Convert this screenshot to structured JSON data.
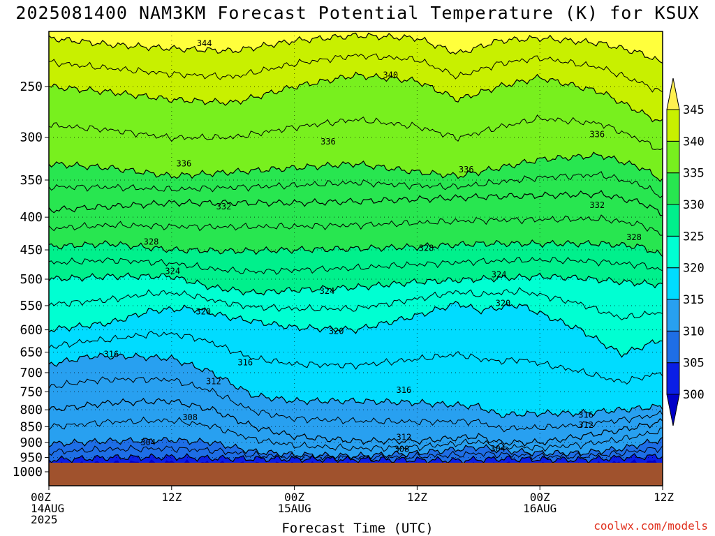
{
  "title": "2025081400 NAM3KM Forecast Potential Temperature (K) for KSUX",
  "credit": "coolwx.com/models",
  "chart_data": {
    "type": "contour",
    "title": "2025081400 NAM3KM Forecast Potential Temperature (K) for KSUX",
    "xlabel": "Forecast Time (UTC)",
    "ylabel": "",
    "y_scale": "log-pressure",
    "y_reversed": true,
    "y_ticks": [
      250,
      300,
      350,
      400,
      450,
      500,
      550,
      600,
      650,
      700,
      750,
      800,
      850,
      900,
      950,
      1000
    ],
    "y_range": [
      200,
      1025
    ],
    "x_range_hours": [
      0,
      60
    ],
    "x_ticks": [
      {
        "hour": 0,
        "lines": [
          "00Z",
          "14AUG",
          "2025"
        ]
      },
      {
        "hour": 12,
        "lines": [
          "12Z"
        ]
      },
      {
        "hour": 24,
        "lines": [
          "00Z",
          "15AUG"
        ]
      },
      {
        "hour": 36,
        "lines": [
          "12Z"
        ]
      },
      {
        "hour": 48,
        "lines": [
          "00Z",
          "16AUG"
        ]
      },
      {
        "hour": 60,
        "lines": [
          "12Z"
        ]
      }
    ],
    "grid": true,
    "colorbar": {
      "levels": [
        300,
        305,
        310,
        315,
        320,
        325,
        330,
        335,
        340,
        345
      ],
      "colors": [
        "#0a1ee6",
        "#1e6ee6",
        "#28a0f0",
        "#00dcff",
        "#00ffd2",
        "#00f08c",
        "#28e650",
        "#78f01e",
        "#c8f000",
        "#ffff3c"
      ],
      "under_color": "#0000c8",
      "over_color": "#fff050"
    },
    "terrain_color": "#a0522d",
    "surface_pressure": 968,
    "isentropes": [
      {
        "theta": 304,
        "p": [
          [
            0,
            958
          ],
          [
            6,
            950
          ],
          [
            12,
            948
          ],
          [
            16,
            952
          ],
          [
            20,
            954
          ],
          [
            24,
            955
          ],
          [
            30,
            956
          ],
          [
            36,
            958
          ],
          [
            40,
            960
          ],
          [
            44,
            954
          ],
          [
            48,
            956
          ],
          [
            52,
            958
          ],
          [
            56,
            950
          ],
          [
            60,
            945
          ]
        ]
      },
      {
        "theta": 308,
        "p": [
          [
            0,
            905
          ],
          [
            6,
            895
          ],
          [
            12,
            892
          ],
          [
            16,
            900
          ],
          [
            20,
            930
          ],
          [
            24,
            940
          ],
          [
            30,
            945
          ],
          [
            36,
            935
          ],
          [
            42,
            915
          ],
          [
            44,
            925
          ],
          [
            48,
            935
          ],
          [
            52,
            935
          ],
          [
            56,
            920
          ],
          [
            60,
            890
          ]
        ]
      },
      {
        "theta": 312,
        "p": [
          [
            0,
            800
          ],
          [
            6,
            780
          ],
          [
            12,
            775
          ],
          [
            16,
            800
          ],
          [
            20,
            850
          ],
          [
            24,
            880
          ],
          [
            30,
            895
          ],
          [
            36,
            895
          ],
          [
            42,
            880
          ],
          [
            44,
            900
          ],
          [
            48,
            900
          ],
          [
            52,
            880
          ],
          [
            56,
            860
          ],
          [
            60,
            835
          ]
        ]
      },
      {
        "theta": 316,
        "p": [
          [
            0,
            680
          ],
          [
            4,
            660
          ],
          [
            8,
            660
          ],
          [
            12,
            665
          ],
          [
            16,
            700
          ],
          [
            20,
            760
          ],
          [
            24,
            775
          ],
          [
            30,
            775
          ],
          [
            36,
            780
          ],
          [
            42,
            790
          ],
          [
            44,
            815
          ],
          [
            48,
            810
          ],
          [
            52,
            810
          ],
          [
            56,
            800
          ],
          [
            60,
            790
          ]
        ]
      },
      {
        "theta": 320,
        "p": [
          [
            0,
            600
          ],
          [
            6,
            585
          ],
          [
            10,
            560
          ],
          [
            14,
            555
          ],
          [
            18,
            575
          ],
          [
            24,
            595
          ],
          [
            30,
            600
          ],
          [
            36,
            570
          ],
          [
            40,
            545
          ],
          [
            42,
            560
          ],
          [
            46,
            548
          ],
          [
            52,
            600
          ],
          [
            56,
            655
          ],
          [
            60,
            620
          ]
        ]
      },
      {
        "theta": 324,
        "p": [
          [
            0,
            500
          ],
          [
            6,
            495
          ],
          [
            12,
            495
          ],
          [
            16,
            515
          ],
          [
            20,
            525
          ],
          [
            24,
            520
          ],
          [
            30,
            515
          ],
          [
            36,
            505
          ],
          [
            42,
            500
          ],
          [
            48,
            495
          ],
          [
            52,
            498
          ],
          [
            56,
            505
          ],
          [
            60,
            510
          ]
        ]
      },
      {
        "theta": 328,
        "p": [
          [
            0,
            445
          ],
          [
            6,
            440
          ],
          [
            12,
            450
          ],
          [
            18,
            452
          ],
          [
            24,
            450
          ],
          [
            30,
            448
          ],
          [
            36,
            445
          ],
          [
            42,
            440
          ],
          [
            48,
            440
          ],
          [
            54,
            440
          ],
          [
            58,
            445
          ],
          [
            60,
            460
          ]
        ]
      },
      {
        "theta": 332,
        "p": [
          [
            0,
            390
          ],
          [
            6,
            385
          ],
          [
            12,
            380
          ],
          [
            18,
            380
          ],
          [
            24,
            380
          ],
          [
            30,
            378
          ],
          [
            36,
            375
          ],
          [
            42,
            372
          ],
          [
            48,
            370
          ],
          [
            54,
            368
          ],
          [
            58,
            380
          ],
          [
            60,
            395
          ]
        ]
      },
      {
        "theta": 336,
        "p": [
          [
            0,
            330
          ],
          [
            6,
            335
          ],
          [
            12,
            345
          ],
          [
            18,
            340
          ],
          [
            24,
            335
          ],
          [
            30,
            330
          ],
          [
            36,
            340
          ],
          [
            40,
            345
          ],
          [
            44,
            335
          ],
          [
            48,
            325
          ],
          [
            54,
            320
          ],
          [
            58,
            335
          ],
          [
            60,
            350
          ]
        ]
      },
      {
        "theta": 340,
        "p": [
          [
            0,
            250
          ],
          [
            6,
            255
          ],
          [
            12,
            262
          ],
          [
            18,
            265
          ],
          [
            24,
            250
          ],
          [
            30,
            240
          ],
          [
            36,
            245
          ],
          [
            40,
            262
          ],
          [
            44,
            250
          ],
          [
            48,
            242
          ],
          [
            54,
            255
          ],
          [
            58,
            275
          ],
          [
            60,
            285
          ]
        ]
      },
      {
        "theta": 344,
        "p": [
          [
            0,
            210
          ],
          [
            6,
            215
          ],
          [
            12,
            218
          ],
          [
            18,
            220
          ],
          [
            24,
            212
          ],
          [
            30,
            208
          ],
          [
            36,
            210
          ],
          [
            40,
            222
          ],
          [
            44,
            212
          ],
          [
            48,
            210
          ],
          [
            54,
            214
          ],
          [
            58,
            222
          ],
          [
            60,
            230
          ]
        ]
      }
    ],
    "contour_labels": [
      {
        "text": "344",
        "hour": 15.2,
        "p": 214
      },
      {
        "text": "340",
        "hour": 33.4,
        "p": 240
      },
      {
        "text": "336",
        "hour": 27.3,
        "p": 305
      },
      {
        "text": "336",
        "hour": 13.2,
        "p": 330
      },
      {
        "text": "336",
        "hour": 40.8,
        "p": 337
      },
      {
        "text": "336",
        "hour": 53.6,
        "p": 297
      },
      {
        "text": "332",
        "hour": 17.1,
        "p": 385
      },
      {
        "text": "332",
        "hour": 53.6,
        "p": 383
      },
      {
        "text": "328",
        "hour": 10.0,
        "p": 437
      },
      {
        "text": "328",
        "hour": 36.9,
        "p": 447
      },
      {
        "text": "328",
        "hour": 57.2,
        "p": 430
      },
      {
        "text": "324",
        "hour": 12.1,
        "p": 486
      },
      {
        "text": "324",
        "hour": 27.2,
        "p": 522
      },
      {
        "text": "324",
        "hour": 44.0,
        "p": 492
      },
      {
        "text": "320",
        "hour": 15.1,
        "p": 562
      },
      {
        "text": "320",
        "hour": 28.1,
        "p": 603
      },
      {
        "text": "320",
        "hour": 44.4,
        "p": 545
      },
      {
        "text": "316",
        "hour": 6.1,
        "p": 655
      },
      {
        "text": "316",
        "hour": 19.2,
        "p": 675
      },
      {
        "text": "316",
        "hour": 34.7,
        "p": 745
      },
      {
        "text": "316",
        "hour": 52.5,
        "p": 815
      },
      {
        "text": "312",
        "hour": 16.1,
        "p": 722
      },
      {
        "text": "312",
        "hour": 34.7,
        "p": 883
      },
      {
        "text": "312",
        "hour": 52.5,
        "p": 845
      },
      {
        "text": "308",
        "hour": 13.8,
        "p": 822
      },
      {
        "text": "308",
        "hour": 34.5,
        "p": 922
      },
      {
        "text": "304",
        "hour": 9.7,
        "p": 900
      },
      {
        "text": "304",
        "hour": 43.9,
        "p": 920
      }
    ]
  }
}
